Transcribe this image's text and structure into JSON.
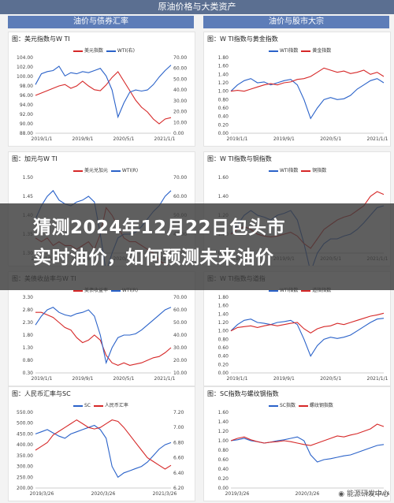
{
  "header": {
    "title": "原油价格与大类资产",
    "left_column": "油价与债券汇率",
    "right_column": "油价与股市大宗"
  },
  "banner": {
    "line1": "猜测2024年12月22日包头市",
    "line2": "实时油价，如何预测未来油价"
  },
  "watermark": "能源研发中心",
  "colors": {
    "red": "#d62828",
    "blue": "#2a62c9",
    "header": "#5d7db8",
    "title_bar": "#5b6f91"
  },
  "chart_data": [
    {
      "id": "p1",
      "type": "line",
      "title": "图：美元指数与W TI",
      "legend": [
        "美元指数",
        "WTI(右)"
      ],
      "x_ticks": [
        "2019/1/1",
        "2019/9/1",
        "2020/5/1",
        "2021/1/1"
      ],
      "y_left_ticks": [
        "104.00",
        "102.00",
        "100.00",
        "98.00",
        "96.00",
        "94.00",
        "92.00",
        "90.00",
        "88.00"
      ],
      "y_right_ticks": [
        "70.00",
        "60.00",
        "50.00",
        "40.00",
        "30.00",
        "20.00",
        "10.00",
        "0.00"
      ],
      "series": [
        {
          "name": "美元指数",
          "color": "#d62828",
          "values": [
            96,
            96.5,
            97,
            97.5,
            98,
            98.3,
            97.5,
            98,
            99,
            98,
            97.2,
            97,
            98.2,
            99.8,
            101,
            99,
            97,
            95,
            93.5,
            92.5,
            91,
            90,
            91,
            91.3
          ]
        },
        {
          "name": "WTI(右)",
          "color": "#2a62c9",
          "values": [
            45,
            55,
            57,
            58,
            62,
            53,
            56,
            55,
            57,
            56,
            58,
            60,
            53,
            40,
            15,
            28,
            38,
            40,
            39,
            40,
            45,
            52,
            58,
            63
          ]
        }
      ]
    },
    {
      "id": "p2",
      "type": "line",
      "title": "图：W TI指数与黄金指数",
      "legend": [
        "WTI指数",
        "黄金指数"
      ],
      "x_ticks": [
        "2019/1/1",
        "2019/9/1",
        "2020/5/1",
        "2021/1/1"
      ],
      "y_left_ticks": [
        "1.80",
        "1.60",
        "1.40",
        "1.20",
        "1.00",
        "0.80",
        "0.60",
        "0.40",
        "0.20",
        "0.00"
      ],
      "series": [
        {
          "name": "WTI指数",
          "color": "#2a62c9",
          "values": [
            1.0,
            1.15,
            1.25,
            1.3,
            1.2,
            1.22,
            1.15,
            1.2,
            1.25,
            1.28,
            1.15,
            0.8,
            0.35,
            0.6,
            0.8,
            0.85,
            0.8,
            0.82,
            0.9,
            1.05,
            1.15,
            1.25,
            1.3,
            1.2
          ]
        },
        {
          "name": "黄金指数",
          "color": "#d62828",
          "values": [
            1.0,
            1.02,
            1.0,
            1.05,
            1.1,
            1.15,
            1.18,
            1.15,
            1.2,
            1.22,
            1.28,
            1.3,
            1.35,
            1.45,
            1.55,
            1.5,
            1.45,
            1.48,
            1.42,
            1.45,
            1.5,
            1.4,
            1.45,
            1.35
          ]
        }
      ]
    },
    {
      "id": "p3",
      "type": "line",
      "title": "图：加元与W TI",
      "legend": [
        "美元兑加元",
        "WTI(R)"
      ],
      "x_ticks": [
        "2019/1/1",
        "2019/9/1",
        "2020/5/1",
        "2021/1/1"
      ],
      "y_left_ticks": [
        "1.50",
        "1.45",
        "1.40",
        "1.35",
        "1.30"
      ],
      "y_right_ticks": [
        "70.00",
        "60.00",
        "50.00",
        "40.00",
        "30.00"
      ],
      "series": [
        {
          "name": "美元兑加元",
          "color": "#d62828",
          "values": [
            1.34,
            1.33,
            1.34,
            1.32,
            1.33,
            1.32,
            1.32,
            1.31,
            1.32,
            1.33,
            1.31,
            1.35,
            1.42,
            1.4,
            1.37,
            1.34,
            1.33,
            1.33,
            1.32,
            1.31,
            1.3,
            1.28,
            1.27,
            1.26
          ]
        },
        {
          "name": "WTI(R)",
          "color": "#2a62c9",
          "values": [
            48,
            55,
            60,
            63,
            58,
            56,
            55,
            57,
            58,
            60,
            57,
            40,
            20,
            30,
            38,
            40,
            40,
            41,
            44,
            48,
            52,
            55,
            60,
            63
          ]
        }
      ]
    },
    {
      "id": "p4",
      "type": "line",
      "title": "图：W TI指数与铜指数",
      "legend": [
        "WTI指数",
        "铜指数"
      ],
      "x_ticks": [
        "2019/1/1",
        "2019/9/1",
        "2020/5/1",
        "2021/1/1"
      ],
      "y_left_ticks": [
        "1.60",
        "1.40",
        "1.20",
        "1.00",
        "0.80"
      ],
      "series": [
        {
          "name": "WTI指数",
          "color": "#2a62c9",
          "values": [
            1.0,
            1.1,
            1.2,
            1.25,
            1.2,
            1.18,
            1.15,
            1.2,
            1.22,
            1.25,
            1.15,
            0.9,
            0.6,
            0.8,
            0.9,
            0.95,
            0.95,
            0.98,
            1.0,
            1.05,
            1.12,
            1.2,
            1.28,
            1.3
          ]
        },
        {
          "name": "铜指数",
          "color": "#d62828",
          "values": [
            1.0,
            1.05,
            1.08,
            1.05,
            1.0,
            0.98,
            0.97,
            0.98,
            1.0,
            1.02,
            0.98,
            0.9,
            0.85,
            0.95,
            1.05,
            1.1,
            1.15,
            1.18,
            1.2,
            1.25,
            1.3,
            1.4,
            1.45,
            1.42
          ]
        }
      ]
    },
    {
      "id": "p5",
      "type": "line",
      "title": "图：美债收益率与W TI",
      "legend": [
        "美债收益率",
        "WTI(R)"
      ],
      "x_ticks": [
        "2019/1/1",
        "2019/9/1",
        "2020/5/1",
        "2021/1/1"
      ],
      "y_left_ticks": [
        "3.30",
        "2.80",
        "2.30",
        "1.80",
        "1.30",
        "0.80",
        "0.30"
      ],
      "y_right_ticks": [
        "70.00",
        "60.00",
        "50.00",
        "40.00",
        "30.00",
        "20.00",
        "10.00"
      ],
      "series": [
        {
          "name": "美债收益率",
          "color": "#d62828",
          "values": [
            2.7,
            2.7,
            2.6,
            2.5,
            2.3,
            2.1,
            2.0,
            1.7,
            1.5,
            1.6,
            1.8,
            1.6,
            1.0,
            0.7,
            0.6,
            0.7,
            0.6,
            0.65,
            0.7,
            0.8,
            0.9,
            0.95,
            1.1,
            1.3
          ]
        },
        {
          "name": "WTI(R)",
          "color": "#2a62c9",
          "values": [
            48,
            55,
            60,
            62,
            58,
            56,
            55,
            57,
            58,
            60,
            55,
            40,
            18,
            30,
            38,
            40,
            40,
            41,
            44,
            48,
            52,
            56,
            60,
            62
          ]
        }
      ]
    },
    {
      "id": "p6",
      "type": "line",
      "title": "图：W TI指数与道指",
      "legend": [
        "WTI指数",
        "道指指数"
      ],
      "x_ticks": [
        "2019/1/1",
        "2019/9/1",
        "2020/5/1",
        "2021/1/1"
      ],
      "y_left_ticks": [
        "1.80",
        "1.60",
        "1.40",
        "1.20",
        "1.00",
        "0.80",
        "0.60",
        "0.40",
        "0.20",
        "0.00"
      ],
      "series": [
        {
          "name": "WTI指数",
          "color": "#2a62c9",
          "values": [
            1.0,
            1.15,
            1.25,
            1.28,
            1.2,
            1.18,
            1.15,
            1.2,
            1.22,
            1.25,
            1.15,
            0.8,
            0.4,
            0.65,
            0.8,
            0.85,
            0.82,
            0.85,
            0.9,
            1.0,
            1.1,
            1.2,
            1.28,
            1.3
          ]
        },
        {
          "name": "道指指数",
          "color": "#d62828",
          "values": [
            1.0,
            1.08,
            1.1,
            1.12,
            1.08,
            1.12,
            1.15,
            1.12,
            1.15,
            1.18,
            1.2,
            1.05,
            0.95,
            1.05,
            1.1,
            1.12,
            1.18,
            1.15,
            1.2,
            1.25,
            1.3,
            1.35,
            1.38,
            1.42
          ]
        }
      ]
    },
    {
      "id": "p7",
      "type": "line",
      "title": "图：人民币汇率与SC",
      "legend": [
        "SC",
        "人民币汇率"
      ],
      "x_ticks": [
        "2019/3/26",
        "2020/3/26",
        "2021/3/26"
      ],
      "y_left_ticks": [
        "550.00",
        "500.00",
        "450.00",
        "400.00",
        "350.00",
        "300.00",
        "250.00",
        "200.00"
      ],
      "y_right_ticks": [
        "7.20",
        "7.00",
        "6.80",
        "6.60",
        "6.40",
        "6.20"
      ],
      "series": [
        {
          "name": "SC",
          "color": "#2a62c9",
          "values": [
            450,
            460,
            470,
            455,
            440,
            430,
            450,
            460,
            470,
            480,
            490,
            470,
            430,
            300,
            250,
            270,
            280,
            290,
            300,
            320,
            350,
            380,
            400,
            410
          ]
        },
        {
          "name": "人民币汇率",
          "color": "#d62828",
          "values": [
            6.7,
            6.75,
            6.8,
            6.9,
            6.95,
            7.0,
            7.05,
            7.1,
            7.05,
            7.0,
            6.98,
            7.0,
            7.05,
            7.1,
            7.08,
            7.0,
            6.9,
            6.8,
            6.7,
            6.6,
            6.55,
            6.5,
            6.45,
            6.5
          ]
        }
      ]
    },
    {
      "id": "p8",
      "type": "line",
      "title": "图：SC指数与螺纹钢指数",
      "legend": [
        "SC指数",
        "螺纹钢指数"
      ],
      "x_ticks": [
        "2019/3/26",
        "2020/3/26",
        "2021/3/26"
      ],
      "y_left_ticks": [
        "1.60",
        "1.40",
        "1.20",
        "1.00",
        "0.80",
        "0.60",
        "0.40",
        "0.20",
        "0.00"
      ],
      "series": [
        {
          "name": "SC指数",
          "color": "#2a62c9",
          "values": [
            1.0,
            1.02,
            1.05,
            1.0,
            0.98,
            0.95,
            0.97,
            1.0,
            1.02,
            1.05,
            1.08,
            1.0,
            0.7,
            0.55,
            0.6,
            0.62,
            0.65,
            0.68,
            0.7,
            0.75,
            0.8,
            0.85,
            0.9,
            0.92
          ]
        },
        {
          "name": "螺纹钢指数",
          "color": "#d62828",
          "values": [
            1.0,
            1.05,
            1.08,
            1.02,
            0.98,
            0.95,
            0.97,
            0.98,
            1.0,
            0.98,
            0.95,
            0.92,
            0.9,
            0.95,
            1.0,
            1.05,
            1.1,
            1.08,
            1.12,
            1.15,
            1.2,
            1.25,
            1.35,
            1.3
          ]
        }
      ]
    }
  ]
}
